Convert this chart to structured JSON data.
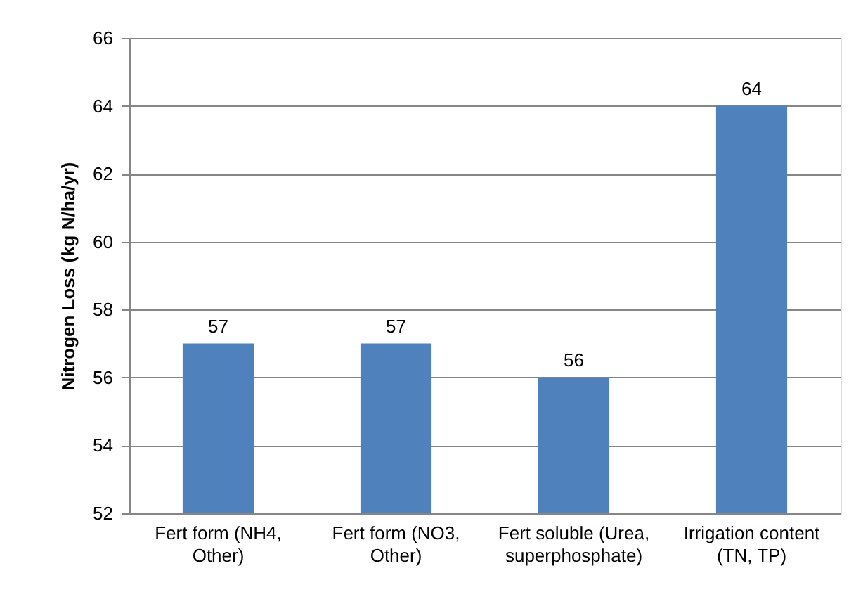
{
  "chart_data": {
    "type": "bar",
    "ylabel": "Nitrogen Loss (kg N/ha/yr)",
    "categories": [
      "Fert form (NH4, Other)",
      "Fert form (NO3, Other)",
      "Fert soluble (Urea, superphosphate)",
      "Irrigation content (TN, TP)"
    ],
    "values": [
      57,
      57,
      56,
      64
    ],
    "color": "#4f81bd",
    "ylim": [
      52,
      66
    ],
    "yticks": [
      52,
      54,
      56,
      58,
      60,
      62,
      64,
      66
    ],
    "grid": "y",
    "data_labels": true
  }
}
